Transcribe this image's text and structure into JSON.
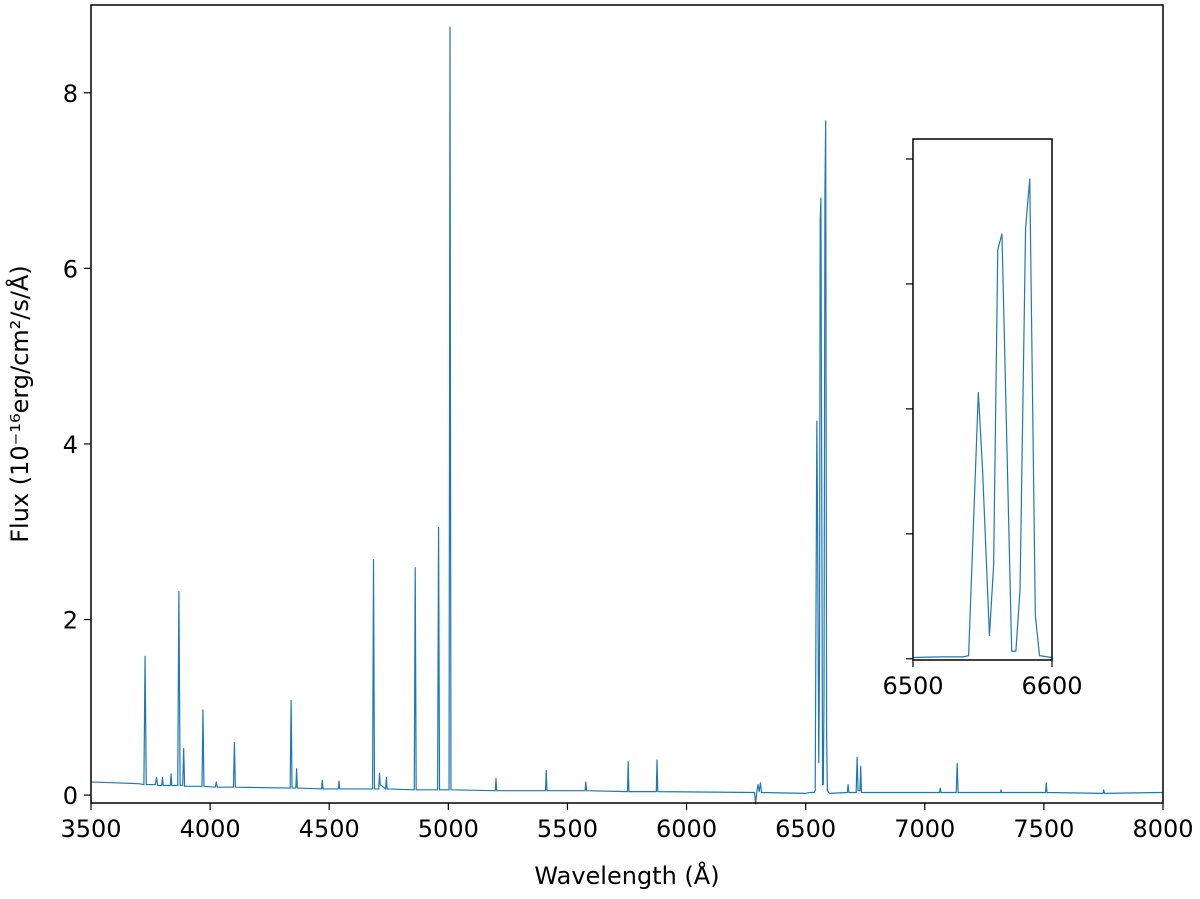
{
  "chart_data": {
    "type": "line",
    "xlabel": "Wavelength (Å)",
    "ylabel": "Flux (10⁻¹⁶erg/cm²/s/Å)",
    "color": "#1f77b4",
    "xlim": [
      3500,
      8000
    ],
    "ylim": [
      -0.09,
      9.0
    ],
    "xticks": [
      3500,
      4000,
      4500,
      5000,
      5500,
      6000,
      6500,
      7000,
      7500,
      8000
    ],
    "yticks": [
      0,
      2,
      4,
      6,
      8
    ],
    "x": [
      3500,
      3600,
      3700,
      3722,
      3727,
      3732,
      3770,
      3775,
      3780,
      3797,
      3800,
      3803,
      3833,
      3836,
      3839,
      3864,
      3869,
      3874,
      3885,
      3889,
      3893,
      3966,
      3970,
      3974,
      4022,
      4026,
      4030,
      4098,
      4102,
      4106,
      4336,
      4340,
      4344,
      4360,
      4363,
      4366,
      4468,
      4471,
      4474,
      4538,
      4541,
      4544,
      4682,
      4686,
      4690,
      4708,
      4711,
      4714,
      4737,
      4740,
      4743,
      4857,
      4861,
      4865,
      4955,
      4959,
      4963,
      5003,
      5007,
      5011,
      5197,
      5200,
      5203,
      5408,
      5411,
      5414,
      5574,
      5577,
      5580,
      5752,
      5755,
      5758,
      5873,
      5876,
      5879,
      6285,
      6290,
      6295,
      6300,
      6305,
      6310,
      6315,
      6500,
      6520,
      6536,
      6540,
      6547,
      6550,
      6555,
      6558,
      6561,
      6564,
      6571,
      6574,
      6577,
      6581,
      6584,
      6588,
      6591,
      6600,
      6675,
      6678,
      6681,
      6712,
      6716,
      6720,
      6728,
      6731,
      6734,
      7000,
      7062,
      7065,
      7068,
      7132,
      7136,
      7140,
      7318,
      7320,
      7322,
      7507,
      7510,
      7513,
      7748,
      7751,
      7754,
      8000
    ],
    "values": [
      0.15,
      0.14,
      0.13,
      0.12,
      1.58,
      0.12,
      0.12,
      0.2,
      0.11,
      0.11,
      0.2,
      0.11,
      0.11,
      0.24,
      0.11,
      0.11,
      2.32,
      0.11,
      0.11,
      0.53,
      0.1,
      0.1,
      0.97,
      0.1,
      0.09,
      0.15,
      0.09,
      0.09,
      0.6,
      0.09,
      0.08,
      1.08,
      0.08,
      0.08,
      0.3,
      0.08,
      0.07,
      0.17,
      0.07,
      0.07,
      0.16,
      0.07,
      0.07,
      2.68,
      0.07,
      0.07,
      0.25,
      0.12,
      0.07,
      0.2,
      0.07,
      0.06,
      2.59,
      0.06,
      0.06,
      3.05,
      0.06,
      0.06,
      8.75,
      0.06,
      0.05,
      0.19,
      0.05,
      0.05,
      0.28,
      0.05,
      0.05,
      0.15,
      0.05,
      0.04,
      0.38,
      0.04,
      0.04,
      0.4,
      0.04,
      0.03,
      -0.1,
      0.04,
      0.12,
      0.04,
      0.14,
      0.03,
      0.02,
      0.03,
      0.03,
      0.05,
      4.26,
      3.05,
      0.37,
      1.5,
      6.55,
      6.8,
      0.12,
      0.12,
      1.1,
      6.9,
      7.68,
      0.7,
      0.05,
      0.02,
      0.03,
      0.12,
      0.03,
      0.03,
      0.43,
      0.05,
      0.05,
      0.33,
      0.03,
      0.03,
      0.03,
      0.08,
      0.03,
      0.03,
      0.36,
      0.03,
      0.03,
      0.06,
      0.03,
      0.03,
      0.14,
      0.03,
      0.02,
      0.06,
      0.02,
      0.03
    ],
    "inset": {
      "xlim": [
        6500,
        6600
      ],
      "ylim": [
        -0.02,
        8.32
      ],
      "xticks": [
        6500,
        6600
      ],
      "yticks": [
        0,
        2,
        4,
        6,
        8
      ],
      "show_ytick_labels": false
    }
  }
}
